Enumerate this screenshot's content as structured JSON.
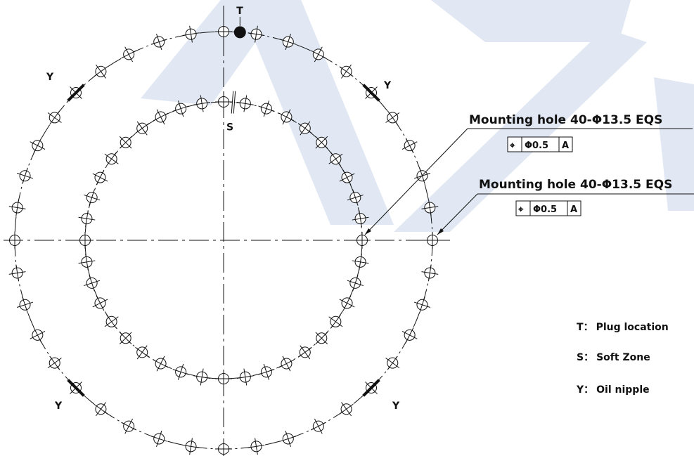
{
  "watermark": {
    "text": "AZ",
    "color": "#c9d6ea"
  },
  "colors": {
    "line": "#111111",
    "watermark": "#c9d6ea"
  },
  "outer_ring": {
    "hole_count": 40,
    "plug_marker_label": "T",
    "oil_nipple_label": "Y"
  },
  "inner_ring": {
    "hole_count": 40,
    "soft_zone_label": "S"
  },
  "callouts": [
    {
      "text": "Mounting hole 40-Φ13.5 EQS",
      "fcf": {
        "symbol": "⌖",
        "tolerance": "Φ0.5",
        "datum": "A"
      }
    },
    {
      "text": "Mounting hole 40-Φ13.5 EQS",
      "fcf": {
        "symbol": "⌖",
        "tolerance": "Φ0.5",
        "datum": "A"
      }
    }
  ],
  "legend": [
    {
      "key": "T",
      "sep": "：",
      "desc": "Plug location"
    },
    {
      "key": "S",
      "sep": "：",
      "desc": "Soft Zone"
    },
    {
      "key": "Y",
      "sep": "：",
      "desc": "Oil nipple"
    }
  ]
}
